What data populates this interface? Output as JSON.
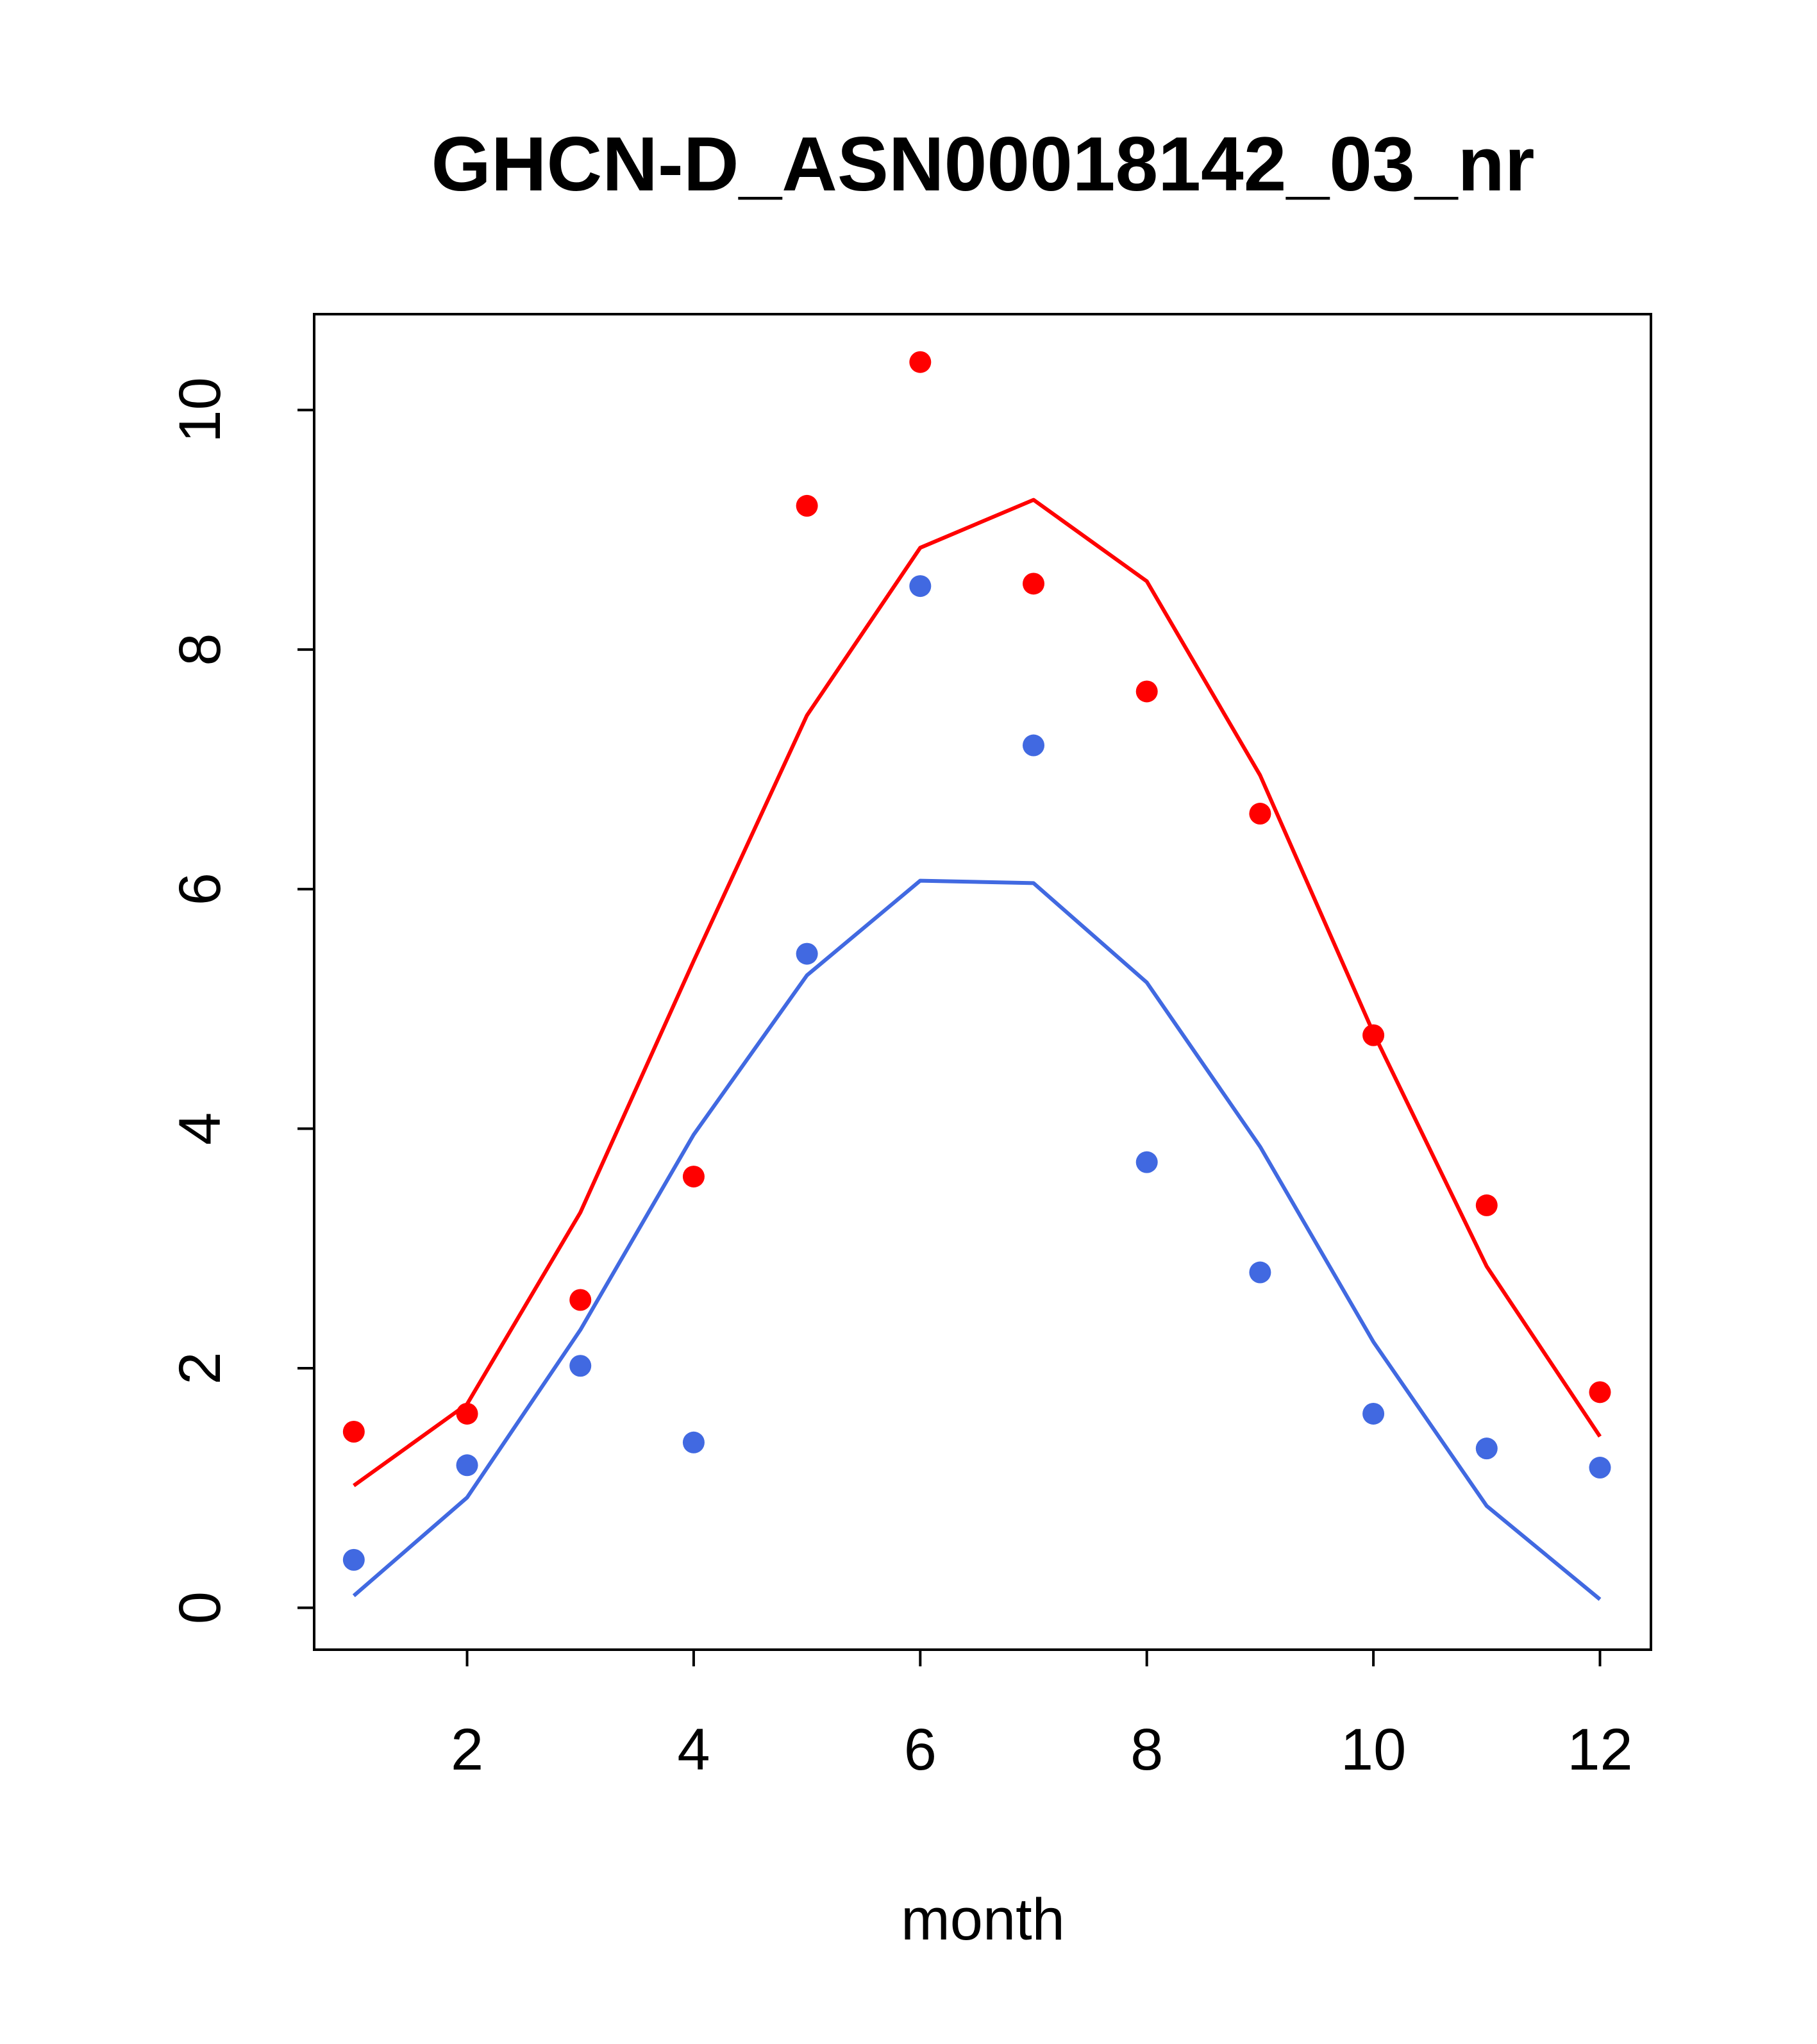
{
  "chart_data": {
    "type": "line",
    "title": "GHCN-D_ASN00018142_03_nr",
    "xlabel": "month",
    "ylabel": "",
    "xlim": [
      0.65,
      12.45
    ],
    "ylim": [
      -0.35,
      10.8
    ],
    "x_ticks": [
      2,
      4,
      6,
      8,
      10,
      12
    ],
    "y_ticks": [
      0,
      2,
      4,
      6,
      8,
      10
    ],
    "grid": false,
    "colors": {
      "red": "#ff0000",
      "blue": "#4169e1"
    },
    "series": [
      {
        "kind": "points",
        "color": "#ff0000",
        "x": [
          1,
          2,
          3,
          4,
          5,
          6,
          7,
          8,
          9,
          10,
          11,
          12
        ],
        "values": [
          1.47,
          1.62,
          2.57,
          3.6,
          9.2,
          10.4,
          8.55,
          7.65,
          6.63,
          4.78,
          3.36,
          1.8
        ]
      },
      {
        "kind": "line",
        "color": "#ff0000",
        "x": [
          1,
          2,
          3,
          4,
          5,
          6,
          7,
          8,
          9,
          10,
          11,
          12
        ],
        "values": [
          1.02,
          1.7,
          3.3,
          5.4,
          7.45,
          8.85,
          9.25,
          8.57,
          6.95,
          4.8,
          2.85,
          1.43
        ]
      },
      {
        "kind": "points",
        "color": "#4169e1",
        "x": [
          1,
          2,
          3,
          4,
          5,
          6,
          7,
          8,
          9,
          10,
          11,
          12
        ],
        "values": [
          0.4,
          1.19,
          2.02,
          1.38,
          5.46,
          8.53,
          7.2,
          3.72,
          2.8,
          1.62,
          1.33,
          1.17
        ]
      },
      {
        "kind": "line",
        "color": "#4169e1",
        "x": [
          1,
          2,
          3,
          4,
          5,
          6,
          7,
          8,
          9,
          10,
          11,
          12
        ],
        "values": [
          0.1,
          0.92,
          2.32,
          3.95,
          5.28,
          6.07,
          6.05,
          5.22,
          3.85,
          2.22,
          0.85,
          0.07
        ]
      }
    ]
  }
}
